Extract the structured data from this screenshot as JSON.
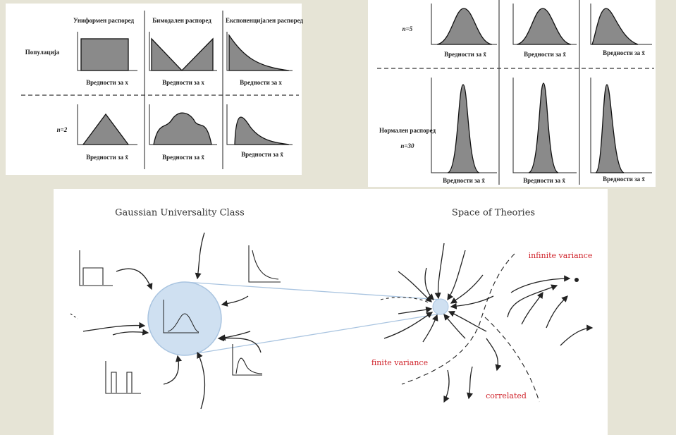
{
  "left_panel": {
    "columns": [
      "Униформен распоред",
      "Бимодален распоред",
      "Експоненцијален распоред"
    ],
    "row_label": "Популација",
    "population_x_labels": [
      "Вредности за x",
      "Вредности за x",
      "Вредности за x"
    ],
    "n_label": "n=2",
    "sample_x_labels": [
      "Вредности за x̄",
      "Вредности за x̄",
      "Вредности за x̄"
    ]
  },
  "right_panel": {
    "top_n_label": "n=5",
    "top_x_labels": [
      "Вредности за x̄",
      "Вредности за x̄",
      "Вредности за x̄"
    ],
    "bottom_label": "Нормален распоред",
    "bottom_n_label": "n=30",
    "bottom_x_labels": [
      "Вредности за x̄",
      "Вредности за x̄",
      "Вредности за x̄"
    ]
  },
  "bottom_panel": {
    "left_title": "Gaussian Universality Class",
    "right_title": "Space of Theories",
    "annotations": [
      "infinite variance",
      "finite variance",
      "correlated"
    ]
  }
}
